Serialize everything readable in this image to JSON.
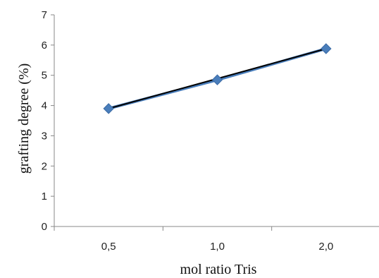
{
  "chart_data": {
    "type": "line",
    "title": "",
    "xlabel": "mol ratio Tris",
    "ylabel": "grafting degree  (%)",
    "categories": [
      "0,5",
      "1,0",
      "2,0"
    ],
    "series": [
      {
        "values": [
          3.9,
          4.85,
          5.88
        ],
        "marker": "diamond",
        "marker_color": "#4a7ebb",
        "line_color": "#1f2d44"
      }
    ],
    "ylim": [
      0,
      7
    ],
    "yticks": [
      "0",
      "1",
      "2",
      "3",
      "4",
      "5",
      "6",
      "7"
    ],
    "trendline": {
      "values": [
        3.9,
        4.85,
        5.88
      ],
      "color": "#000000"
    },
    "grid": false,
    "legend": "none"
  }
}
